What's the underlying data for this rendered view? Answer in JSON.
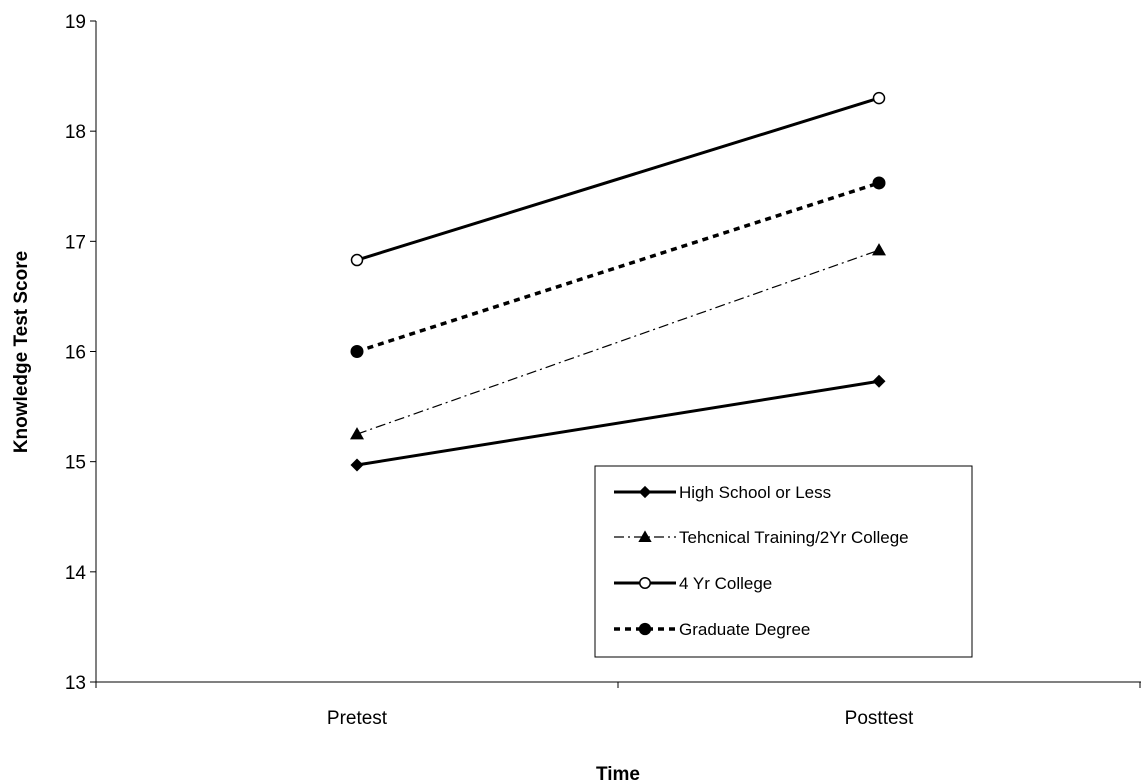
{
  "chart_data": {
    "type": "line",
    "title": "",
    "xlabel": "Time",
    "ylabel": "Knowledge Test Score",
    "categories": [
      "Pretest",
      "Posttest"
    ],
    "ylim": [
      13,
      19
    ],
    "yticks": [
      "13",
      "14",
      "15",
      "16",
      "17",
      "18",
      "19"
    ],
    "grid": false,
    "legend_position": "bottom-right",
    "series": [
      {
        "name": "High School or Less",
        "values": [
          14.97,
          15.73
        ],
        "marker": "diamond",
        "line": "solid"
      },
      {
        "name": "Tehcnical Training/2Yr College",
        "values": [
          15.25,
          16.92
        ],
        "marker": "triangle",
        "line": "dash-dot"
      },
      {
        "name": "4 Yr College",
        "values": [
          16.83,
          18.3
        ],
        "marker": "open-circle",
        "line": "solid"
      },
      {
        "name": "Graduate Degree",
        "values": [
          16.0,
          17.53
        ],
        "marker": "filled-circle",
        "line": "dashed"
      }
    ]
  }
}
